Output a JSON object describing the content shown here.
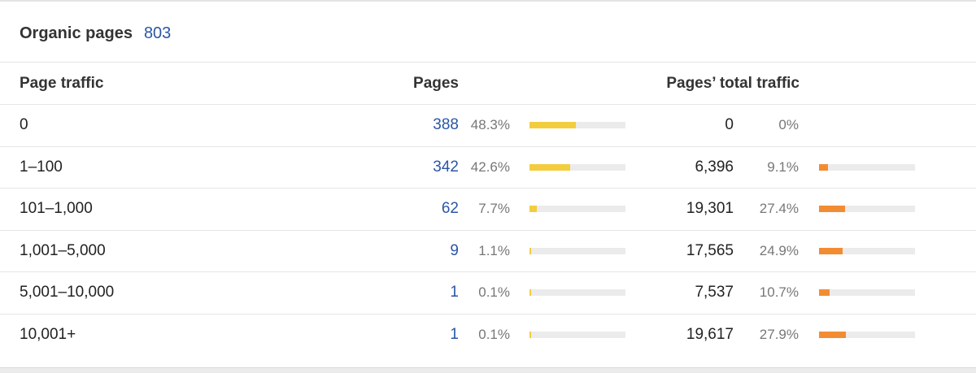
{
  "widget": {
    "title": "Organic pages",
    "count": "803"
  },
  "table": {
    "headers": {
      "page_traffic": "Page traffic",
      "pages": "Pages",
      "total_traffic": "Pages’ total traffic"
    },
    "rows": [
      {
        "range": "0",
        "pages": "388",
        "pages_pct": "48.3%",
        "pages_share": 48.3,
        "traffic": "0",
        "traffic_pct": "0%",
        "traffic_share": 0
      },
      {
        "range": "1–100",
        "pages": "342",
        "pages_pct": "42.6%",
        "pages_share": 42.6,
        "traffic": "6,396",
        "traffic_pct": "9.1%",
        "traffic_share": 9.1
      },
      {
        "range": "101–1,000",
        "pages": "62",
        "pages_pct": "7.7%",
        "pages_share": 7.7,
        "traffic": "19,301",
        "traffic_pct": "27.4%",
        "traffic_share": 27.4
      },
      {
        "range": "1,001–5,000",
        "pages": "9",
        "pages_pct": "1.1%",
        "pages_share": 1.1,
        "traffic": "17,565",
        "traffic_pct": "24.9%",
        "traffic_share": 24.9
      },
      {
        "range": "5,001–10,000",
        "pages": "1",
        "pages_pct": "0.1%",
        "pages_share": 0.1,
        "traffic": "7,537",
        "traffic_pct": "10.7%",
        "traffic_share": 10.7
      },
      {
        "range": "10,001+",
        "pages": "1",
        "pages_pct": "0.1%",
        "pages_share": 0.1,
        "traffic": "19,617",
        "traffic_pct": "27.9%",
        "traffic_share": 27.9
      }
    ]
  },
  "colors": {
    "link": "#2a56a8",
    "pages_bar": "#f3cd3e",
    "traffic_bar": "#f28c33",
    "bar_track": "#ebebeb",
    "muted_text": "#777777"
  }
}
